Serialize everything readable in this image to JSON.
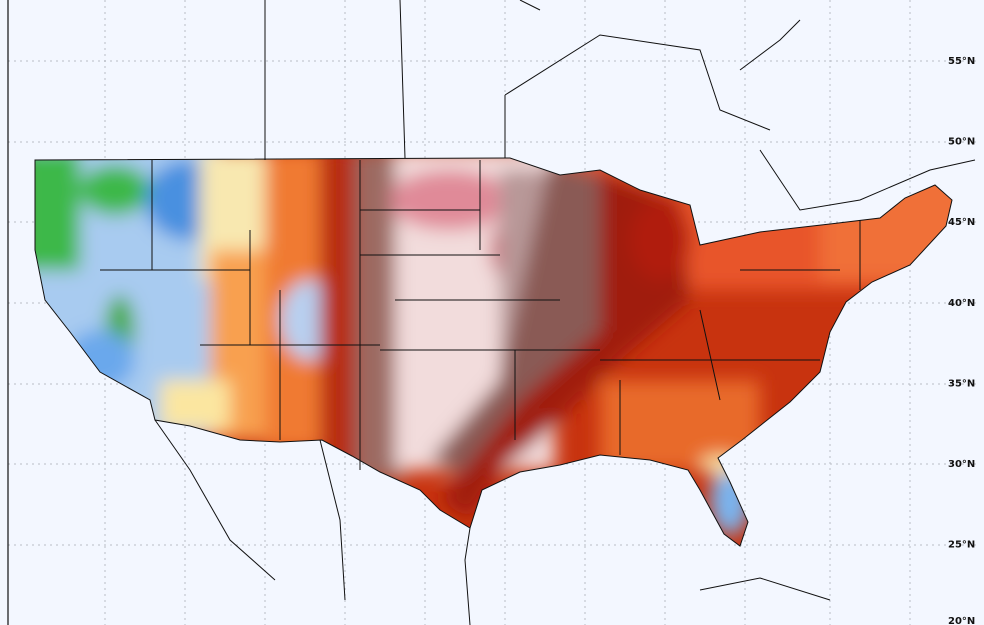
{
  "map": {
    "lat_labels": [
      "55°N",
      "50°N",
      "45°N",
      "40°N",
      "35°N",
      "30°N",
      "25°N",
      "20°N"
    ]
  }
}
